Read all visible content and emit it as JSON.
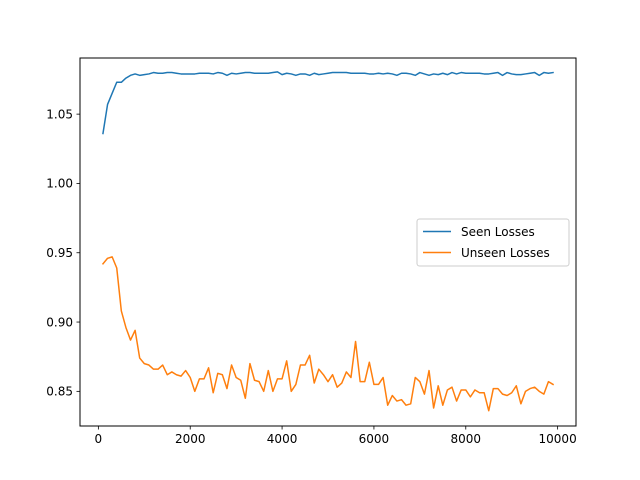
{
  "chart_data": {
    "type": "line",
    "title": "",
    "xlabel": "",
    "ylabel": "",
    "xlim": [
      -400,
      10400
    ],
    "ylim": [
      0.825,
      1.0905
    ],
    "xticks": [
      0,
      2000,
      4000,
      6000,
      8000,
      10000
    ],
    "xtick_labels": [
      "0",
      "2000",
      "4000",
      "6000",
      "8000",
      "10000"
    ],
    "yticks": [
      0.85,
      0.9,
      0.95,
      1.0,
      1.05
    ],
    "ytick_labels": [
      "0.85",
      "0.90",
      "0.95",
      "1.00",
      "1.05"
    ],
    "grid": false,
    "legend_position": "center-right",
    "x": [
      100,
      200,
      300,
      400,
      500,
      600,
      700,
      800,
      900,
      1000,
      1100,
      1200,
      1300,
      1400,
      1500,
      1600,
      1700,
      1800,
      1900,
      2000,
      2100,
      2200,
      2300,
      2400,
      2500,
      2600,
      2700,
      2800,
      2900,
      3000,
      3100,
      3200,
      3300,
      3400,
      3500,
      3600,
      3700,
      3800,
      3900,
      4000,
      4100,
      4200,
      4300,
      4400,
      4500,
      4600,
      4700,
      4800,
      4900,
      5000,
      5100,
      5200,
      5300,
      5400,
      5500,
      5600,
      5700,
      5800,
      5900,
      6000,
      6100,
      6200,
      6300,
      6400,
      6500,
      6600,
      6700,
      6800,
      6900,
      7000,
      7100,
      7200,
      7300,
      7400,
      7500,
      7600,
      7700,
      7800,
      7900,
      8000,
      8100,
      8200,
      8300,
      8400,
      8500,
      8600,
      8700,
      8800,
      8900,
      9000,
      9100,
      9200,
      9300,
      9400,
      9500,
      9600,
      9700,
      9800,
      9900
    ],
    "series": [
      {
        "name": "Seen Losses",
        "color": "#1f77b4",
        "values": [
          1.036,
          1.057,
          1.065,
          1.073,
          1.073,
          1.076,
          1.078,
          1.079,
          1.078,
          1.0785,
          1.079,
          1.08,
          1.0795,
          1.0795,
          1.08,
          1.08,
          1.0795,
          1.079,
          1.079,
          1.079,
          1.079,
          1.0795,
          1.0795,
          1.0795,
          1.079,
          1.08,
          1.0795,
          1.078,
          1.0795,
          1.079,
          1.0795,
          1.08,
          1.08,
          1.0795,
          1.0795,
          1.0795,
          1.0795,
          1.08,
          1.0805,
          1.0785,
          1.0795,
          1.079,
          1.078,
          1.079,
          1.079,
          1.078,
          1.0795,
          1.0785,
          1.079,
          1.0795,
          1.08,
          1.08,
          1.08,
          1.08,
          1.0795,
          1.0795,
          1.0795,
          1.0795,
          1.079,
          1.079,
          1.0795,
          1.079,
          1.0795,
          1.079,
          1.078,
          1.0795,
          1.0795,
          1.079,
          1.078,
          1.08,
          1.079,
          1.078,
          1.079,
          1.0785,
          1.0795,
          1.0785,
          1.08,
          1.079,
          1.08,
          1.0795,
          1.0795,
          1.0795,
          1.0795,
          1.079,
          1.079,
          1.0795,
          1.08,
          1.078,
          1.08,
          1.079,
          1.0785,
          1.0785,
          1.079,
          1.0795,
          1.08,
          1.078,
          1.08,
          1.0795,
          1.08
        ]
      },
      {
        "name": "Unseen Losses",
        "color": "#ff7f0e",
        "values": [
          0.942,
          0.946,
          0.947,
          0.939,
          0.908,
          0.896,
          0.887,
          0.894,
          0.874,
          0.87,
          0.869,
          0.866,
          0.866,
          0.869,
          0.862,
          0.864,
          0.862,
          0.861,
          0.865,
          0.86,
          0.85,
          0.859,
          0.859,
          0.867,
          0.849,
          0.863,
          0.862,
          0.852,
          0.869,
          0.86,
          0.858,
          0.845,
          0.87,
          0.858,
          0.857,
          0.85,
          0.865,
          0.85,
          0.859,
          0.859,
          0.872,
          0.85,
          0.855,
          0.869,
          0.869,
          0.876,
          0.856,
          0.866,
          0.862,
          0.857,
          0.862,
          0.853,
          0.856,
          0.864,
          0.86,
          0.886,
          0.857,
          0.857,
          0.871,
          0.855,
          0.855,
          0.86,
          0.84,
          0.847,
          0.843,
          0.844,
          0.84,
          0.841,
          0.86,
          0.857,
          0.848,
          0.865,
          0.838,
          0.854,
          0.84,
          0.851,
          0.853,
          0.843,
          0.851,
          0.851,
          0.846,
          0.851,
          0.849,
          0.849,
          0.836,
          0.852,
          0.852,
          0.848,
          0.847,
          0.849,
          0.854,
          0.841,
          0.85,
          0.852,
          0.853,
          0.85,
          0.848,
          0.857,
          0.855
        ]
      }
    ]
  }
}
